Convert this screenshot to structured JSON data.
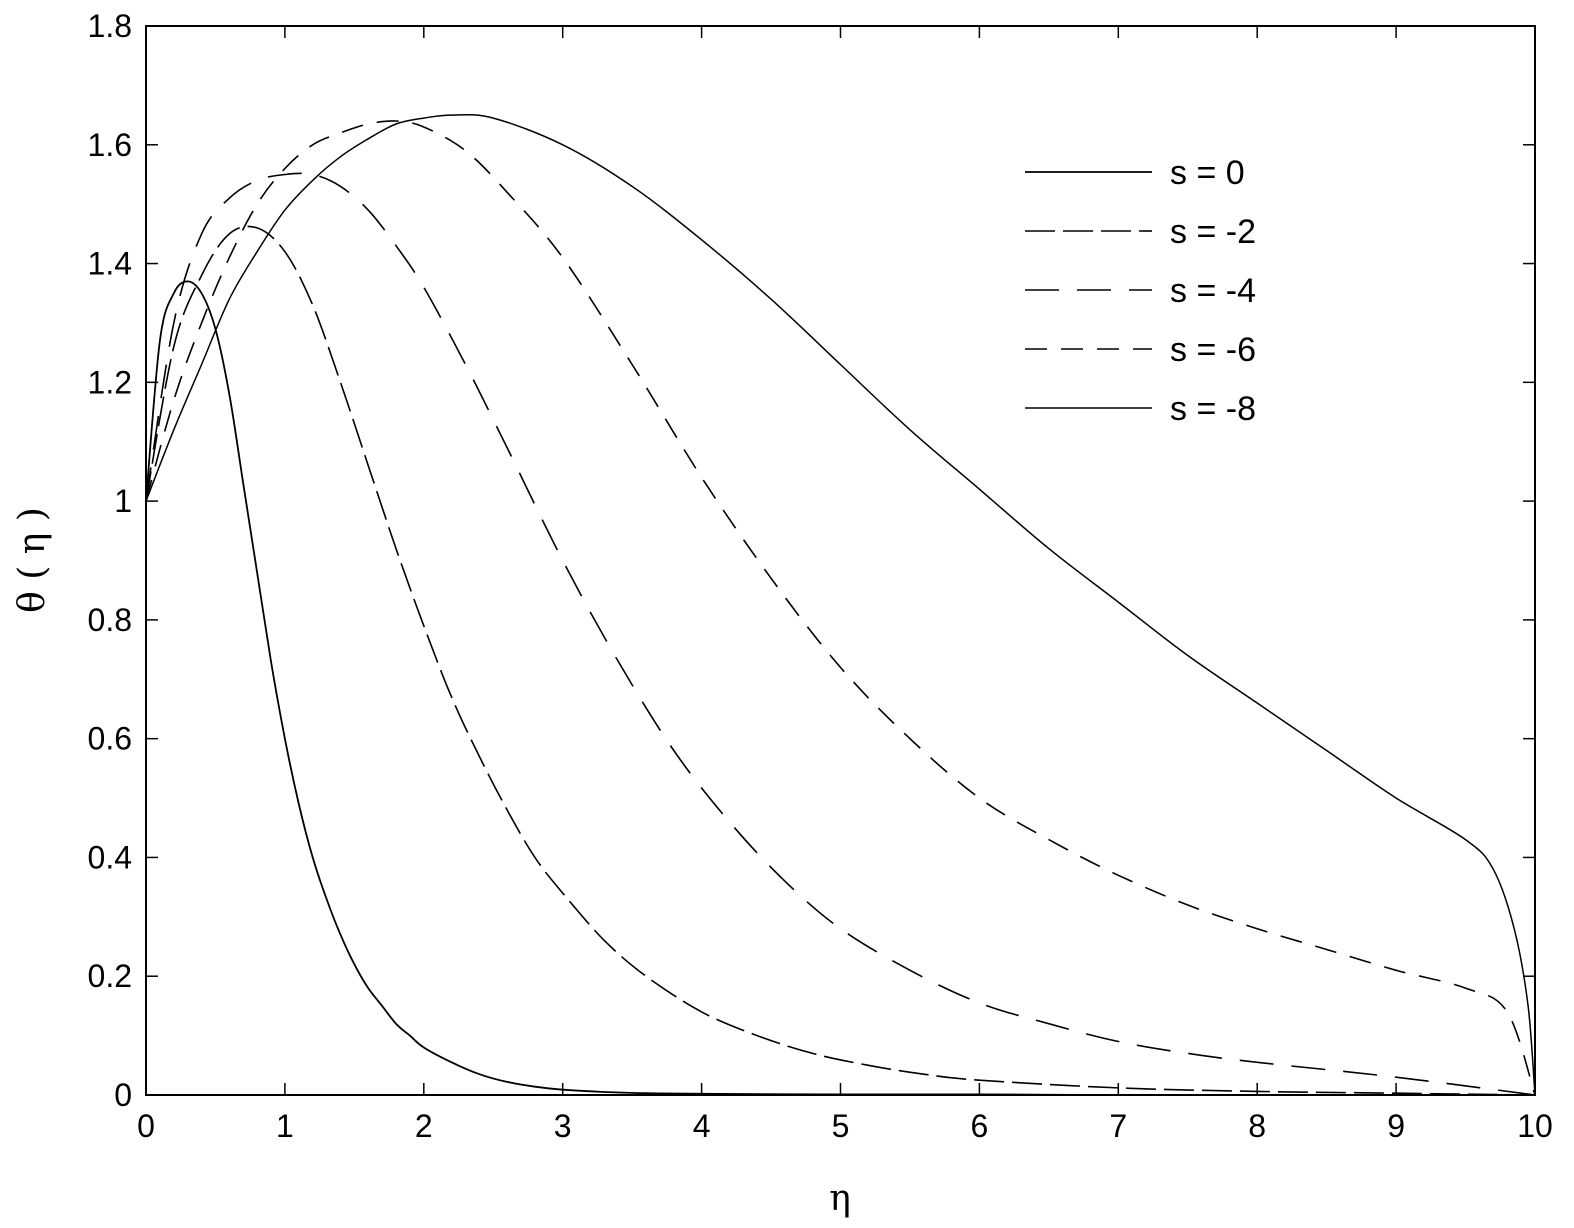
{
  "chart_data": {
    "type": "line",
    "xlabel": "η",
    "ylabel": "θ ( η )",
    "xlim": [
      0,
      10
    ],
    "ylim": [
      0,
      1.8
    ],
    "x_ticks": [
      "0",
      "1",
      "2",
      "3",
      "4",
      "5",
      "6",
      "7",
      "8",
      "9",
      "10"
    ],
    "y_ticks": [
      "0",
      "0.2",
      "0.4",
      "0.6",
      "0.8",
      "1",
      "1.2",
      "1.4",
      "1.6",
      "1.8"
    ],
    "grid": false,
    "legend_position": "top-right",
    "series": [
      {
        "name": "s = 0",
        "dash": "solid",
        "x": [
          0,
          0.1,
          0.2,
          0.3,
          0.4,
          0.5,
          0.6,
          0.7,
          0.8,
          0.9,
          1.0,
          1.1,
          1.2,
          1.3,
          1.4,
          1.5,
          1.6,
          1.7,
          1.8,
          1.9,
          2.0,
          2.2,
          2.4,
          2.6,
          2.8,
          3.0,
          3.3,
          3.6,
          4.0,
          5.0,
          6.0,
          7.0,
          8.0,
          9.0,
          10.0
        ],
        "y": [
          1.0,
          1.27,
          1.35,
          1.37,
          1.35,
          1.29,
          1.18,
          1.03,
          0.88,
          0.73,
          0.6,
          0.49,
          0.4,
          0.33,
          0.27,
          0.22,
          0.18,
          0.15,
          0.12,
          0.1,
          0.08,
          0.055,
          0.035,
          0.022,
          0.014,
          0.009,
          0.005,
          0.003,
          0.002,
          0.001,
          0.001,
          0.0,
          0.0,
          0.0,
          0.0
        ]
      },
      {
        "name": "s = -2",
        "dash": "long-short",
        "x": [
          0,
          0.2,
          0.4,
          0.6,
          0.8,
          1.0,
          1.2,
          1.4,
          1.6,
          1.8,
          2.0,
          2.2,
          2.4,
          2.6,
          2.8,
          3.0,
          3.3,
          3.6,
          4.0,
          4.4,
          4.8,
          5.2,
          5.6,
          6.0,
          7.0,
          8.0,
          9.0,
          10.0
        ],
        "y": [
          1.0,
          1.26,
          1.38,
          1.45,
          1.46,
          1.42,
          1.33,
          1.2,
          1.06,
          0.92,
          0.79,
          0.67,
          0.57,
          0.48,
          0.4,
          0.34,
          0.26,
          0.2,
          0.14,
          0.1,
          0.07,
          0.05,
          0.035,
          0.025,
          0.012,
          0.006,
          0.003,
          0.0
        ]
      },
      {
        "name": "s = -4",
        "dash": "long-gap",
        "x": [
          0,
          0.2,
          0.4,
          0.6,
          0.8,
          1.0,
          1.2,
          1.4,
          1.6,
          1.8,
          2.0,
          2.3,
          2.6,
          3.0,
          3.4,
          3.8,
          4.2,
          4.6,
          5.0,
          5.5,
          6.0,
          6.5,
          7.0,
          7.5,
          8.0,
          9.0,
          10.0
        ],
        "y": [
          1.0,
          1.3,
          1.45,
          1.51,
          1.54,
          1.55,
          1.55,
          1.53,
          1.49,
          1.43,
          1.36,
          1.23,
          1.09,
          0.9,
          0.73,
          0.58,
          0.46,
          0.36,
          0.28,
          0.21,
          0.155,
          0.12,
          0.09,
          0.07,
          0.055,
          0.03,
          0.0
        ]
      },
      {
        "name": "s = -6",
        "dash": "medium",
        "x": [
          0,
          0.2,
          0.4,
          0.6,
          0.8,
          1.0,
          1.2,
          1.4,
          1.6,
          1.8,
          2.0,
          2.3,
          2.6,
          3.0,
          3.5,
          4.0,
          4.5,
          5.0,
          5.5,
          6.0,
          6.5,
          7.0,
          7.5,
          8.0,
          8.5,
          9.0,
          9.5,
          9.8,
          10.0
        ],
        "y": [
          1.0,
          1.17,
          1.3,
          1.41,
          1.5,
          1.56,
          1.6,
          1.62,
          1.635,
          1.64,
          1.63,
          1.59,
          1.52,
          1.41,
          1.23,
          1.04,
          0.87,
          0.72,
          0.6,
          0.5,
          0.43,
          0.37,
          0.32,
          0.28,
          0.245,
          0.21,
          0.18,
          0.14,
          0.0
        ]
      },
      {
        "name": "s = -8",
        "dash": "solid-thin",
        "x": [
          0,
          0.2,
          0.4,
          0.6,
          0.8,
          1.0,
          1.2,
          1.4,
          1.6,
          1.8,
          2.0,
          2.2,
          2.5,
          3.0,
          3.5,
          4.0,
          4.5,
          5.0,
          5.5,
          6.0,
          6.5,
          7.0,
          7.5,
          8.0,
          8.5,
          9.0,
          9.5,
          9.7,
          9.85,
          9.95,
          10.0
        ],
        "y": [
          1.0,
          1.12,
          1.23,
          1.34,
          1.42,
          1.49,
          1.54,
          1.58,
          1.61,
          1.635,
          1.645,
          1.65,
          1.645,
          1.6,
          1.53,
          1.44,
          1.34,
          1.23,
          1.12,
          1.02,
          0.92,
          0.83,
          0.74,
          0.66,
          0.58,
          0.5,
          0.43,
          0.38,
          0.28,
          0.15,
          0.0
        ]
      }
    ]
  }
}
